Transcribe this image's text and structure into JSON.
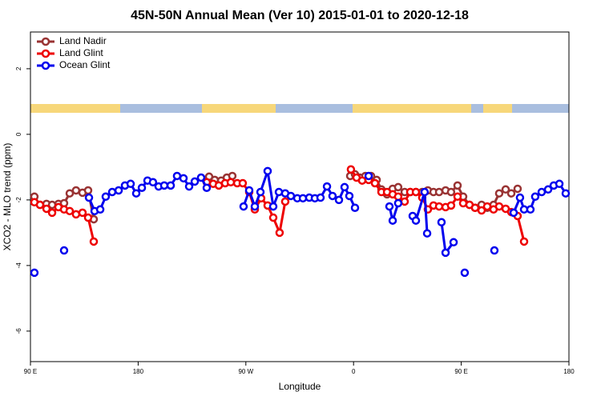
{
  "chart_data": {
    "type": "line",
    "title": "45N-50N Annual Mean (Ver 10)   2015-01-01 to 2020-12-18",
    "x_label": "Longitude",
    "y_label": "XCO2 - MLO trend (ppm)",
    "xlim": [
      90,
      540
    ],
    "ylim": [
      -6.93,
      3.12
    ],
    "xticks": [
      {
        "value": 90,
        "label": "90 E"
      },
      {
        "value": 180,
        "label": "180"
      },
      {
        "value": 270,
        "label": "90 W"
      },
      {
        "value": 360,
        "label": "0"
      },
      {
        "value": 450,
        "label": "90 E"
      },
      {
        "value": 540,
        "label": "180"
      }
    ],
    "yticks": [
      2,
      0,
      -2,
      -4,
      -6
    ],
    "grid": false,
    "legend": "top-left",
    "series": [
      {
        "name": "Land Nadir",
        "color": "#993333",
        "x": [
          93.3,
          98.0,
          103.4,
          108.1,
          113.4,
          118.1,
          122.8,
          128.1,
          133.5,
          138.2,
          142.9,
          null,
          239.3,
          244.0,
          249.4,
          254.1,
          258.7,
          null,
          357.2,
          361.2,
          365.2,
          369.9,
          374.6,
          379.3,
          383.3,
          388.0,
          392.7,
          397.3,
          402.7,
          407.4,
          412.1,
          417.4,
          422.1,
          426.8,
          431.5,
          436.9,
          441.5,
          446.9,
          451.6,
          456.9,
          461.6,
          467.0,
          471.7,
          477.0,
          481.7,
          487.1,
          491.8,
          497.1
        ],
        "values": [
          -1.9,
          -2.15,
          -2.12,
          -2.15,
          -2.12,
          -2.1,
          -1.8,
          -1.71,
          -1.78,
          -1.71,
          -2.59,
          null,
          -1.29,
          -1.39,
          -1.41,
          -1.32,
          -1.27,
          null,
          -1.27,
          -1.22,
          -1.32,
          -1.27,
          -1.27,
          -1.39,
          -1.68,
          -1.83,
          -1.66,
          -1.61,
          -1.76,
          -1.76,
          -1.76,
          -1.76,
          -1.71,
          -1.76,
          -1.76,
          -1.71,
          -1.76,
          -1.56,
          -1.9,
          -2.15,
          -2.24,
          -2.15,
          -2.24,
          -2.15,
          -1.8,
          -1.68,
          -1.8,
          -1.66
        ]
      },
      {
        "name": "Land Glint",
        "color": "#ee0000",
        "x": [
          93.3,
          98.0,
          103.4,
          108.1,
          113.4,
          118.1,
          122.8,
          128.1,
          133.5,
          138.2,
          142.9,
          null,
          237.3,
          242.7,
          247.4,
          252.7,
          257.4,
          262.8,
          267.4,
          272.8,
          277.5,
          282.8,
          288.2,
          292.9,
          298.2,
          302.9,
          null,
          357.8,
          362.5,
          367.2,
          372.6,
          377.9,
          383.3,
          388.0,
          392.7,
          397.3,
          402.7,
          407.4,
          412.1,
          417.4,
          422.1,
          426.8,
          431.5,
          436.9,
          441.5,
          446.9,
          451.6,
          456.9,
          461.6,
          467.0,
          471.7,
          477.0,
          481.7,
          487.1,
          491.8,
          497.1,
          502.5
        ],
        "values": [
          -2.07,
          -2.15,
          -2.27,
          -2.39,
          -2.22,
          -2.29,
          -2.34,
          -2.44,
          -2.39,
          -2.54,
          -3.27,
          null,
          -1.46,
          -1.51,
          -1.56,
          -1.49,
          -1.46,
          -1.49,
          -1.49,
          -1.76,
          -2.29,
          -1.95,
          -2.17,
          -2.54,
          -3.0,
          -2.05,
          null,
          -1.07,
          -1.32,
          -1.41,
          -1.39,
          -1.49,
          -1.76,
          -1.76,
          -1.83,
          -1.9,
          -2.05,
          -1.76,
          -1.76,
          -1.93,
          -2.29,
          -2.17,
          -2.2,
          -2.22,
          -2.17,
          -1.9,
          -2.1,
          -2.15,
          -2.24,
          -2.32,
          -2.2,
          -2.29,
          -2.2,
          -2.27,
          -2.37,
          -2.49,
          -3.27
        ]
      },
      {
        "name": "Ocean Glint",
        "color": "#0000ee",
        "x": [
          93.3,
          null,
          118.1,
          null,
          138.9,
          143.6,
          148.3,
          152.9,
          158.3,
          163.7,
          169.0,
          173.7,
          178.4,
          183.1,
          187.8,
          192.4,
          197.1,
          201.8,
          207.2,
          212.5,
          217.9,
          222.6,
          227.3,
          232.6,
          237.3,
          null,
          268.1,
          272.8,
          277.5,
          282.2,
          288.2,
          292.9,
          297.6,
          302.9,
          307.6,
          313.0,
          317.7,
          323.0,
          327.7,
          332.4,
          337.8,
          342.4,
          347.8,
          352.5,
          356.5,
          361.2,
          null,
          372.6,
          null,
          390.0,
          392.7,
          397.3,
          null,
          409.4,
          412.1,
          419.4,
          421.5,
          null,
          433.5,
          436.9,
          443.6,
          null,
          452.9,
          null,
          477.7,
          null,
          493.8,
          499.1,
          502.5,
          507.8,
          511.8,
          517.2,
          522.6,
          527.3,
          532.0,
          537.3
        ],
        "values": [
          -4.22,
          null,
          -3.54,
          null,
          -1.93,
          -2.34,
          -2.29,
          -1.9,
          -1.76,
          -1.71,
          -1.56,
          -1.51,
          -1.8,
          -1.63,
          -1.41,
          -1.46,
          -1.59,
          -1.56,
          -1.56,
          -1.27,
          -1.34,
          -1.59,
          -1.44,
          -1.32,
          -1.63,
          null,
          -2.2,
          -1.71,
          -2.2,
          -1.76,
          -1.12,
          -2.2,
          -1.76,
          -1.8,
          -1.88,
          -1.95,
          -1.95,
          -1.93,
          -1.95,
          -1.93,
          -1.59,
          -1.88,
          -2.0,
          -1.61,
          -1.88,
          -2.24,
          null,
          -1.27,
          null,
          -2.2,
          -2.63,
          -2.1,
          null,
          -2.49,
          -2.63,
          -1.76,
          -3.02,
          null,
          -2.68,
          -3.61,
          -3.29,
          null,
          -4.22,
          null,
          -3.54,
          null,
          -2.39,
          -1.93,
          -2.29,
          -2.29,
          -1.9,
          -1.76,
          -1.68,
          -1.56,
          -1.51,
          -1.8
        ]
      }
    ]
  }
}
